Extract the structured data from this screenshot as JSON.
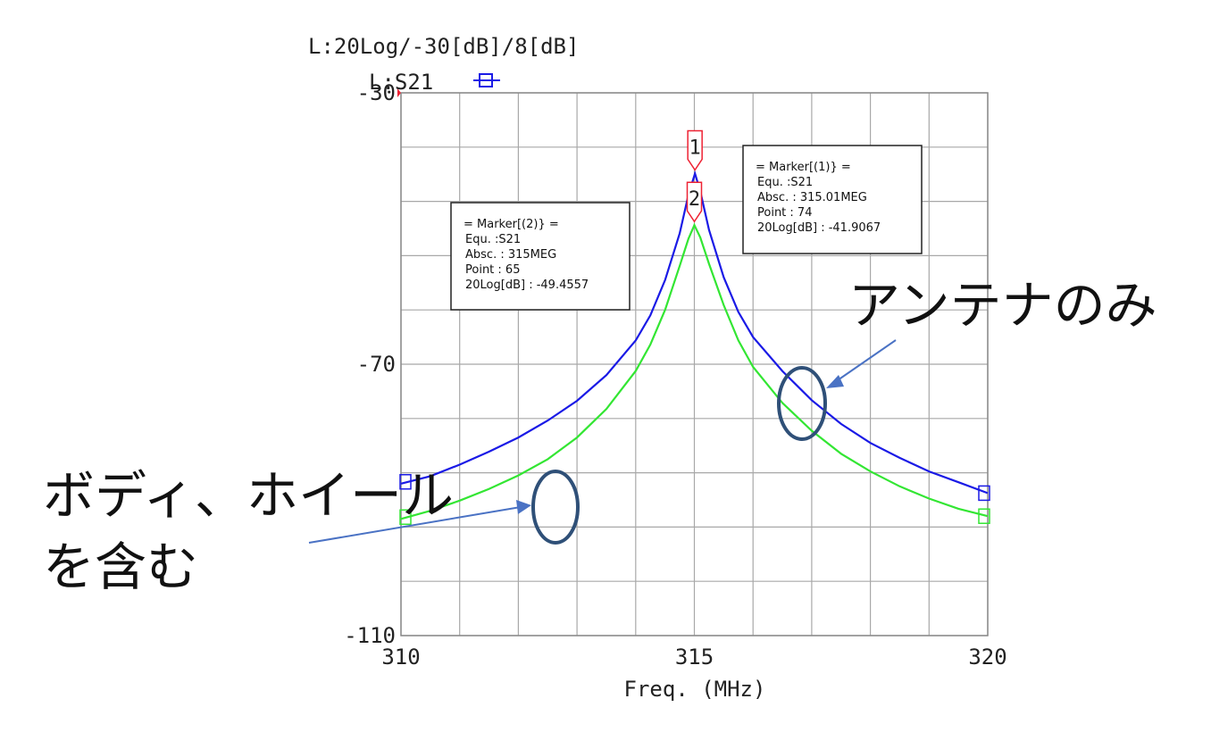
{
  "chart_data": {
    "type": "line",
    "title": "L:20Log/-30[dB]/8[dB]",
    "legend_label": "L:S21",
    "xlabel": "Freq. (MHz)",
    "ylabel": "",
    "xlim": [
      310,
      320
    ],
    "ylim": [
      -110,
      -30
    ],
    "x_ticks": [
      310,
      315,
      320
    ],
    "y_ticks": [
      -30,
      -70,
      -110
    ],
    "x_grid_step": 1,
    "y_grid_step": 8,
    "grid": true,
    "series": [
      {
        "color": "#1a1ae6",
        "points": [
          [
            310,
            -87.6
          ],
          [
            310.5,
            -86.5
          ],
          [
            311,
            -84.8
          ],
          [
            311.5,
            -82.9
          ],
          [
            312,
            -80.8
          ],
          [
            312.5,
            -78.3
          ],
          [
            313,
            -75.4
          ],
          [
            313.5,
            -71.6
          ],
          [
            314,
            -66.5
          ],
          [
            314.25,
            -62.8
          ],
          [
            314.5,
            -57.6
          ],
          [
            314.75,
            -50.7
          ],
          [
            314.9,
            -45.0
          ],
          [
            315.01,
            -41.9
          ],
          [
            315.1,
            -44.5
          ],
          [
            315.25,
            -50.2
          ],
          [
            315.5,
            -57.2
          ],
          [
            315.75,
            -62.3
          ],
          [
            316,
            -66.0
          ],
          [
            316.5,
            -71.0
          ],
          [
            317,
            -75.3
          ],
          [
            317.5,
            -78.8
          ],
          [
            318,
            -81.6
          ],
          [
            318.5,
            -83.8
          ],
          [
            319,
            -85.8
          ],
          [
            319.5,
            -87.4
          ],
          [
            320,
            -89.0
          ]
        ]
      },
      {
        "color": "#33e633",
        "points": [
          [
            310,
            -92.8
          ],
          [
            310.5,
            -91.6
          ],
          [
            311,
            -90.1
          ],
          [
            311.5,
            -88.4
          ],
          [
            312,
            -86.4
          ],
          [
            312.5,
            -84.0
          ],
          [
            313,
            -80.8
          ],
          [
            313.5,
            -76.6
          ],
          [
            314,
            -71.0
          ],
          [
            314.25,
            -67.1
          ],
          [
            314.5,
            -62.0
          ],
          [
            314.75,
            -55.5
          ],
          [
            314.9,
            -51.5
          ],
          [
            315.0,
            -49.5
          ],
          [
            315.1,
            -51.3
          ],
          [
            315.25,
            -55.2
          ],
          [
            315.5,
            -61.3
          ],
          [
            315.75,
            -66.5
          ],
          [
            316,
            -70.4
          ],
          [
            316.5,
            -75.7
          ],
          [
            317,
            -79.8
          ],
          [
            317.5,
            -83.2
          ],
          [
            318,
            -85.8
          ],
          [
            318.5,
            -88.0
          ],
          [
            319,
            -89.8
          ],
          [
            319.5,
            -91.3
          ],
          [
            320,
            -92.4
          ]
        ]
      }
    ],
    "markers": [
      {
        "label": "1",
        "x": 315.01,
        "y": -41.9
      },
      {
        "label": "2",
        "x": 315.0,
        "y": -49.5
      }
    ],
    "marker_boxes": [
      {
        "name": "marker-box-2",
        "lines": [
          "= Marker[(2)} =",
          "Equ.     :S21",
          "Absc.    : 315MEG",
          "Point    : 65",
          "20Log[dB] : -49.4557"
        ]
      },
      {
        "name": "marker-box-1",
        "lines": [
          "= Marker[(1)} =",
          "Equ.     :S21",
          "Absc.    : 315.01MEG",
          "Point    : 74",
          "20Log[dB] : -41.9067"
        ]
      }
    ]
  },
  "annotations": {
    "antenna_only": "アンテナのみ",
    "with_body_line1": "ボディ、ホイール",
    "with_body_line2": "を含む"
  }
}
